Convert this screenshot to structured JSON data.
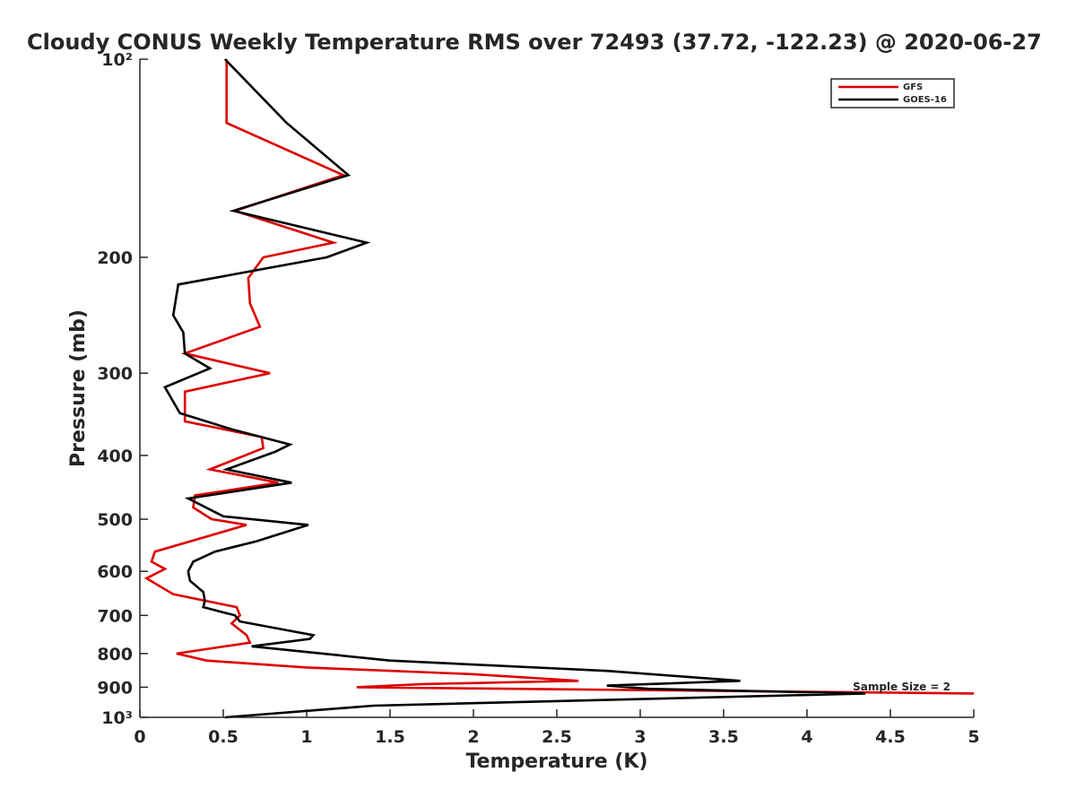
{
  "chart_data": {
    "type": "line",
    "title": "Cloudy CONUS Weekly Temperature RMS over 72493 (37.72, -122.23) @ 2020-06-27",
    "xlabel": "Temperature (K)",
    "ylabel": "Pressure (mb)",
    "xlim": [
      0,
      5
    ],
    "ylim": [
      100,
      1000
    ],
    "y_scale": "log",
    "y_reversed": true,
    "grid": false,
    "legend_position": "top-right",
    "x_ticks": [
      0,
      0.5,
      1,
      1.5,
      2,
      2.5,
      3,
      3.5,
      4,
      4.5,
      5
    ],
    "x_tick_labels": [
      "0",
      "0.5",
      "1",
      "1.5",
      "2",
      "2.5",
      "3",
      "3.5",
      "4",
      "4.5",
      "5"
    ],
    "y_ticks": [
      100,
      200,
      300,
      400,
      500,
      600,
      700,
      800,
      900,
      1000
    ],
    "y_tick_labels": [
      "10²",
      "200",
      "300",
      "400",
      "500",
      "600",
      "700",
      "800",
      "900",
      "10³"
    ],
    "annotation": "Sample Size = 2",
    "series": [
      {
        "name": "GFS",
        "color": "#dd0000",
        "x": [
          0.52,
          0.52,
          1.22,
          0.57,
          1.16,
          0.74,
          0.65,
          0.66,
          0.72,
          0.27,
          0.78,
          0.27,
          0.27,
          0.73,
          0.74,
          0.42,
          0.83,
          0.33,
          0.32,
          0.43,
          0.64,
          0.09,
          0.07,
          0.15,
          0.04,
          0.2,
          0.58,
          0.6,
          0.55,
          0.64,
          0.66,
          0.22,
          0.4,
          1.0,
          2.0,
          2.63,
          1.7,
          1.3,
          5.0
        ],
        "y": [
          100,
          125,
          150,
          170,
          190,
          200,
          215,
          235,
          255,
          280,
          300,
          320,
          355,
          375,
          390,
          420,
          440,
          460,
          480,
          500,
          510,
          560,
          580,
          595,
          615,
          650,
          680,
          700,
          720,
          750,
          770,
          800,
          820,
          840,
          860,
          880,
          890,
          900,
          920
        ]
      },
      {
        "name": "GOES-16",
        "color": "#000000",
        "x": [
          0.51,
          0.88,
          1.25,
          0.56,
          1.36,
          1.12,
          0.23,
          0.2,
          0.26,
          0.27,
          0.42,
          0.15,
          0.24,
          0.55,
          0.9,
          0.81,
          0.52,
          0.91,
          0.29,
          0.5,
          1.01,
          0.7,
          0.45,
          0.32,
          0.29,
          0.3,
          0.38,
          0.39,
          0.38,
          0.57,
          0.6,
          1.04,
          1.02,
          0.67,
          1.5,
          2.8,
          3.6,
          2.8,
          3.05,
          4.35,
          1.4,
          0.51
        ],
        "y": [
          100,
          125,
          150,
          170,
          190,
          200,
          220,
          245,
          260,
          280,
          295,
          315,
          345,
          365,
          385,
          395,
          420,
          440,
          465,
          495,
          510,
          540,
          560,
          580,
          600,
          620,
          645,
          665,
          680,
          700,
          715,
          750,
          760,
          780,
          820,
          850,
          880,
          895,
          905,
          920,
          960,
          1000
        ]
      }
    ]
  }
}
